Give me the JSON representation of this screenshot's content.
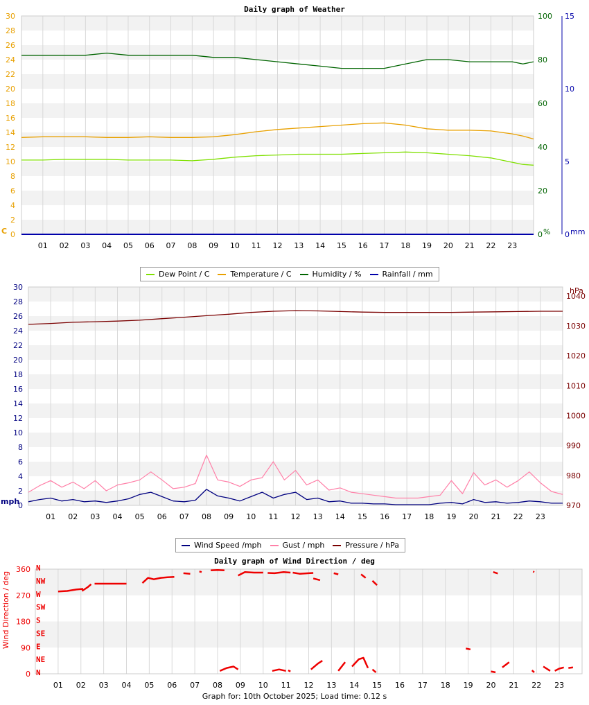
{
  "chart_data": [
    {
      "type": "line",
      "title": "Daily graph of Weather",
      "x_ticks": [
        "01",
        "02",
        "03",
        "04",
        "05",
        "06",
        "07",
        "08",
        "09",
        "10",
        "11",
        "12",
        "13",
        "14",
        "15",
        "16",
        "17",
        "18",
        "19",
        "20",
        "21",
        "22",
        "23"
      ],
      "axes": {
        "left": {
          "unit": "C",
          "ticks": [
            "0",
            "2",
            "4",
            "6",
            "8",
            "10",
            "12",
            "14",
            "16",
            "18",
            "20",
            "22",
            "24",
            "26",
            "28",
            "30"
          ],
          "range": [
            0,
            30
          ],
          "color": "#e8a000"
        },
        "right1": {
          "unit": "%",
          "ticks": [
            "0",
            "20",
            "40",
            "60",
            "80",
            "100"
          ],
          "range": [
            0,
            100
          ],
          "color": "#006400"
        },
        "right2": {
          "unit": "mm",
          "ticks": [
            "0",
            "5",
            "10",
            "15"
          ],
          "range": [
            0,
            15
          ],
          "color": "#0000aa"
        }
      },
      "x_range": [
        0,
        24
      ],
      "legend_position": "bottom",
      "series": [
        {
          "name": "Dew Point / C",
          "color": "#7fe000",
          "axis": "left",
          "x": [
            0,
            1,
            2,
            3,
            4,
            5,
            6,
            7,
            8,
            9,
            10,
            11,
            12,
            13,
            14,
            15,
            16,
            17,
            18,
            19,
            20,
            21,
            22,
            23,
            23.5,
            24
          ],
          "values": [
            10.2,
            10.2,
            10.3,
            10.3,
            10.3,
            10.2,
            10.2,
            10.2,
            10.1,
            10.3,
            10.6,
            10.8,
            10.9,
            11.0,
            11.0,
            11.0,
            11.1,
            11.2,
            11.3,
            11.2,
            11.0,
            10.8,
            10.5,
            9.9,
            9.6,
            9.5
          ]
        },
        {
          "name": "Temperature / C",
          "color": "#e8a000",
          "axis": "left",
          "x": [
            0,
            1,
            2,
            3,
            4,
            5,
            6,
            7,
            8,
            9,
            10,
            11,
            12,
            13,
            14,
            15,
            16,
            17,
            18,
            19,
            20,
            21,
            22,
            23,
            23.5,
            24
          ],
          "values": [
            13.3,
            13.4,
            13.4,
            13.4,
            13.3,
            13.3,
            13.4,
            13.3,
            13.3,
            13.4,
            13.7,
            14.1,
            14.4,
            14.6,
            14.8,
            15.0,
            15.2,
            15.3,
            15.0,
            14.5,
            14.3,
            14.3,
            14.2,
            13.8,
            13.5,
            13.1
          ]
        },
        {
          "name": "Humidity / %",
          "color": "#006400",
          "axis": "right1",
          "x": [
            0,
            1,
            2,
            3,
            4,
            5,
            6,
            7,
            8,
            9,
            10,
            11,
            12,
            13,
            14,
            15,
            16,
            17,
            18,
            19,
            20,
            21,
            22,
            23,
            23.5,
            24
          ],
          "values": [
            82,
            82,
            82,
            82,
            83,
            82,
            82,
            82,
            82,
            81,
            81,
            80,
            79,
            78,
            77,
            76,
            76,
            76,
            78,
            80,
            80,
            79,
            79,
            79,
            78,
            79
          ]
        },
        {
          "name": "Rainfall / mm",
          "color": "#0000aa",
          "axis": "right2",
          "x": [
            0,
            24
          ],
          "values": [
            0,
            0
          ]
        }
      ]
    },
    {
      "type": "line",
      "x_ticks": [
        "01",
        "02",
        "03",
        "04",
        "05",
        "06",
        "07",
        "08",
        "09",
        "10",
        "11",
        "12",
        "13",
        "14",
        "15",
        "16",
        "17",
        "18",
        "19",
        "20",
        "21",
        "22",
        "23"
      ],
      "axes": {
        "left": {
          "unit": "mph",
          "ticks": [
            "0",
            "2",
            "4",
            "6",
            "8",
            "10",
            "12",
            "14",
            "16",
            "18",
            "20",
            "22",
            "24",
            "26",
            "28",
            "30"
          ],
          "range": [
            0,
            30
          ],
          "color": "#000080"
        },
        "right": {
          "unit": "hPa",
          "ticks": [
            "970",
            "980",
            "990",
            "1000",
            "1010",
            "1020",
            "1030",
            "1040"
          ],
          "range": [
            970,
            1043
          ],
          "color": "#7a0000"
        }
      },
      "x_range": [
        0,
        24
      ],
      "legend_position": "bottom",
      "series": [
        {
          "name": "Wind Speed /mph",
          "color": "#000080",
          "axis": "left",
          "x": [
            0,
            0.5,
            1,
            1.5,
            2,
            2.5,
            3,
            3.5,
            4,
            4.5,
            5,
            5.5,
            6,
            6.5,
            7,
            7.5,
            8,
            8.5,
            9,
            9.5,
            10,
            10.5,
            11,
            11.5,
            12,
            12.5,
            13,
            13.5,
            14,
            14.5,
            15,
            15.5,
            16,
            16.5,
            17,
            17.5,
            18,
            18.5,
            19,
            19.5,
            20,
            20.5,
            21,
            21.5,
            22,
            22.5,
            23,
            23.5,
            24
          ],
          "values": [
            0.5,
            0.8,
            1.0,
            0.6,
            0.8,
            0.5,
            0.6,
            0.4,
            0.6,
            0.9,
            1.5,
            1.8,
            1.2,
            0.6,
            0.5,
            0.7,
            2.2,
            1.3,
            1.0,
            0.6,
            1.2,
            1.8,
            1.0,
            1.5,
            1.8,
            0.8,
            1.0,
            0.5,
            0.6,
            0.3,
            0.3,
            0.2,
            0.2,
            0.1,
            0.1,
            0.1,
            0.1,
            0.3,
            0.4,
            0.2,
            0.8,
            0.4,
            0.5,
            0.3,
            0.4,
            0.6,
            0.5,
            0.3,
            0.3
          ]
        },
        {
          "name": "Gust / mph",
          "color": "#ff80a8",
          "axis": "left",
          "x": [
            0,
            0.5,
            1,
            1.5,
            2,
            2.5,
            3,
            3.5,
            4,
            4.5,
            5,
            5.5,
            6,
            6.5,
            7,
            7.5,
            8,
            8.5,
            9,
            9.5,
            10,
            10.5,
            11,
            11.5,
            12,
            12.5,
            13,
            13.5,
            14,
            14.5,
            15,
            15.5,
            16,
            16.5,
            17,
            17.5,
            18,
            18.5,
            19,
            19.5,
            20,
            20.5,
            21,
            21.5,
            22,
            22.5,
            23,
            23.5,
            24
          ],
          "values": [
            1.8,
            2.7,
            3.4,
            2.5,
            3.2,
            2.3,
            3.4,
            2.0,
            2.8,
            3.1,
            3.5,
            4.6,
            3.5,
            2.3,
            2.5,
            3.0,
            6.9,
            3.5,
            3.2,
            2.6,
            3.5,
            3.8,
            6.0,
            3.5,
            4.8,
            2.8,
            3.5,
            2.1,
            2.4,
            1.8,
            1.6,
            1.4,
            1.2,
            1.0,
            1.0,
            1.0,
            1.2,
            1.4,
            3.4,
            1.6,
            4.5,
            2.8,
            3.5,
            2.5,
            3.4,
            4.6,
            3.1,
            1.9,
            1.5
          ]
        },
        {
          "name": "Pressure / hPa",
          "color": "#7a0000",
          "axis": "right",
          "x": [
            0,
            1,
            2,
            3,
            4,
            5,
            6,
            7,
            8,
            9,
            10,
            11,
            12,
            13,
            14,
            15,
            16,
            17,
            18,
            19,
            20,
            21,
            22,
            23,
            24
          ],
          "values": [
            1030.5,
            1030.8,
            1031.2,
            1031.4,
            1031.6,
            1031.9,
            1032.4,
            1032.9,
            1033.4,
            1033.9,
            1034.5,
            1034.9,
            1035.1,
            1035.0,
            1034.8,
            1034.6,
            1034.5,
            1034.5,
            1034.5,
            1034.5,
            1034.6,
            1034.7,
            1034.8,
            1034.9,
            1034.9
          ]
        }
      ]
    },
    {
      "type": "scatter",
      "title": "Daily graph of Wind Direction / deg",
      "ylabel": "Wind Direction / deg",
      "y_ticks": [
        "0",
        "90",
        "180",
        "270",
        "360"
      ],
      "ylim": [
        0,
        360
      ],
      "x_range": [
        0,
        24
      ],
      "compass_labels": [
        "N",
        "NE",
        "E",
        "SE",
        "S",
        "SW",
        "W",
        "NW",
        "N"
      ],
      "x_ticks": [
        "01",
        "02",
        "03",
        "04",
        "05",
        "06",
        "07",
        "08",
        "09",
        "10",
        "11",
        "12",
        "13",
        "14",
        "15",
        "16",
        "17",
        "18",
        "19",
        "20",
        "21",
        "22",
        "23"
      ],
      "color": "#ee0000",
      "segments": [
        {
          "x": [
            1.0,
            1.4,
            1.8,
            2.1
          ],
          "values": [
            283,
            285,
            290,
            292
          ]
        },
        {
          "x": [
            2.05,
            2.3,
            2.45
          ],
          "values": [
            285,
            298,
            308
          ]
        },
        {
          "x": [
            2.6,
            3.0,
            3.5,
            4.0
          ],
          "values": [
            310,
            310,
            310,
            310
          ]
        },
        {
          "x": [
            4.7,
            4.95,
            5.2,
            5.5,
            5.8,
            6.1
          ],
          "values": [
            312,
            330,
            325,
            330,
            332,
            333
          ]
        },
        {
          "x": [
            6.5,
            6.8
          ],
          "values": [
            346,
            344
          ]
        },
        {
          "x": [
            7.2,
            7.3
          ],
          "values": [
            352,
            350
          ]
        },
        {
          "x": [
            7.7,
            8.0,
            8.3
          ],
          "values": [
            356,
            357,
            356
          ]
        },
        {
          "x": [
            8.9,
            9.2,
            9.6,
            10.0
          ],
          "values": [
            338,
            350,
            348,
            348
          ]
        },
        {
          "x": [
            10.2,
            10.5,
            10.9,
            11.2
          ],
          "values": [
            347,
            346,
            350,
            348
          ]
        },
        {
          "x": [
            11.3,
            11.6,
            12.0,
            12.2
          ],
          "values": [
            348,
            344,
            346,
            347
          ]
        },
        {
          "x": [
            12.2,
            12.5
          ],
          "values": [
            328,
            322
          ]
        },
        {
          "x": [
            13.1,
            13.3
          ],
          "values": [
            346,
            342
          ]
        },
        {
          "x": [
            14.3,
            14.5
          ],
          "values": [
            342,
            330
          ]
        },
        {
          "x": [
            14.8,
            15.0
          ],
          "values": [
            320,
            305
          ]
        },
        {
          "x": [
            20.1,
            20.3
          ],
          "values": [
            350,
            345
          ]
        },
        {
          "x": [
            21.85,
            21.9
          ],
          "values": [
            352,
            350
          ]
        },
        {
          "x": [
            8.1,
            8.4,
            8.7,
            8.9
          ],
          "values": [
            10,
            20,
            25,
            15
          ]
        },
        {
          "x": [
            10.4,
            10.7,
            11.0
          ],
          "values": [
            10,
            15,
            10
          ]
        },
        {
          "x": [
            11.1,
            11.2
          ],
          "values": [
            12,
            8
          ]
        },
        {
          "x": [
            12.1,
            12.4,
            12.6
          ],
          "values": [
            15,
            35,
            45
          ]
        },
        {
          "x": [
            13.3,
            13.5,
            13.6
          ],
          "values": [
            10,
            30,
            40
          ]
        },
        {
          "x": [
            13.9,
            14.2,
            14.4,
            14.6
          ],
          "values": [
            25,
            50,
            55,
            20
          ]
        },
        {
          "x": [
            14.8,
            14.95
          ],
          "values": [
            15,
            5
          ]
        },
        {
          "x": [
            18.9,
            19.1
          ],
          "values": [
            87,
            84
          ]
        },
        {
          "x": [
            20.0,
            20.2
          ],
          "values": [
            8,
            5
          ]
        },
        {
          "x": [
            20.5,
            20.8
          ],
          "values": [
            22,
            40
          ]
        },
        {
          "x": [
            21.8,
            21.9
          ],
          "values": [
            12,
            5
          ]
        },
        {
          "x": [
            22.3,
            22.6
          ],
          "values": [
            25,
            10
          ]
        },
        {
          "x": [
            22.8,
            23.0,
            23.2
          ],
          "values": [
            10,
            18,
            22
          ]
        },
        {
          "x": [
            23.4,
            23.6
          ],
          "values": [
            20,
            22
          ]
        }
      ],
      "footer": "Graph for: 10th October 2025; Load time: 0.12 s"
    }
  ]
}
